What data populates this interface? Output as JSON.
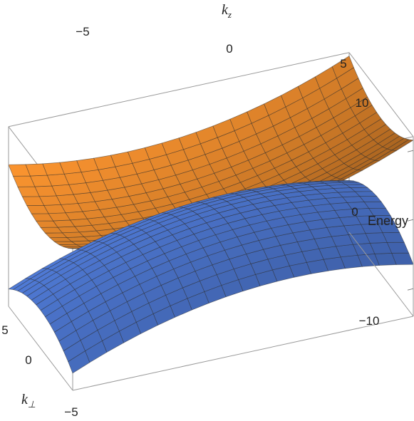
{
  "chart_data": {
    "type": "surface3d",
    "title": "",
    "axes": {
      "kz": {
        "label": "k",
        "subscript": "z",
        "ticks": [
          "−5",
          "0",
          "5"
        ],
        "range": [
          -5,
          5
        ]
      },
      "kperp": {
        "label": "k",
        "subscript": "⊥",
        "ticks": [
          "5",
          "0",
          "−5"
        ],
        "range": [
          -5,
          5
        ]
      },
      "energy": {
        "label": "Energy",
        "ticks": [
          "10",
          "0",
          "−10"
        ],
        "range": [
          -14,
          12
        ]
      }
    },
    "series": [
      {
        "band": "upper",
        "color": "#e8892c",
        "energy_formula": "E = 2 + 0.16*kz^2 + 0.12*kperp^2 + 0.5*kz",
        "samples_kz0": [
          {
            "kperp": -5,
            "E": 5.0
          },
          {
            "kperp": 0,
            "E": 2.0
          },
          {
            "kperp": 5,
            "E": 5.0
          }
        ]
      },
      {
        "band": "lower",
        "color": "#4a72c8",
        "energy_formula": "E = -2 - 0.16*kz^2 - 0.12*kperp^2 + 0.5*kz",
        "samples_kz0": [
          {
            "kperp": -5,
            "E": -5.0
          },
          {
            "kperp": 0,
            "E": -2.0
          },
          {
            "kperp": 5,
            "E": -5.0
          }
        ]
      }
    ],
    "mesh": {
      "kz_lines": 20,
      "kperp_lines": 14
    },
    "grid": false,
    "box": true,
    "legend": "none"
  }
}
